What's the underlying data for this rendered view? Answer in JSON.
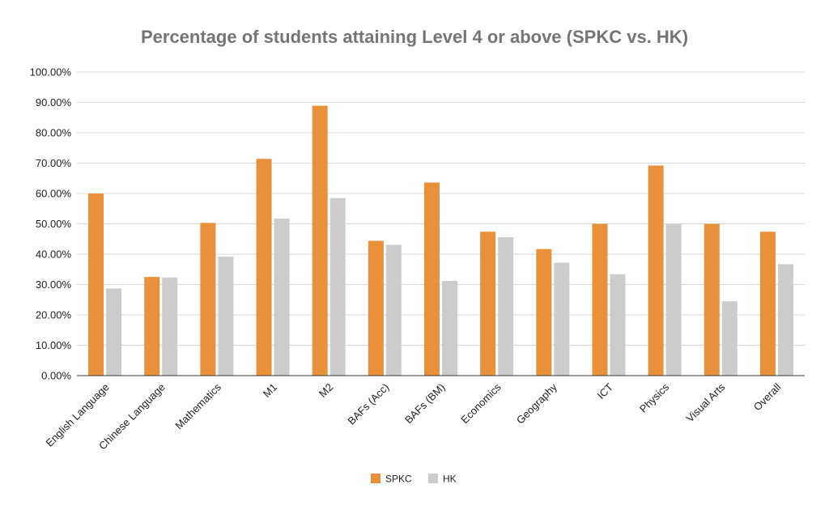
{
  "chart_data": {
    "type": "bar",
    "title": "Percentage of students attaining Level 4 or above (SPKC vs. HK)",
    "xlabel": "",
    "ylabel": "",
    "ylim": [
      0,
      100
    ],
    "yticks": [
      "0.00%",
      "10.00%",
      "20.00%",
      "30.00%",
      "40.00%",
      "50.00%",
      "60.00%",
      "70.00%",
      "80.00%",
      "90.00%",
      "100.00%"
    ],
    "categories": [
      "English Language",
      "Chinese Language",
      "Mathematics",
      "M1",
      "M2",
      "BAFs (Acc)",
      "BAFs (BM)",
      "Economics",
      "Geography",
      "ICT",
      "Physics",
      "Visual Arts",
      "Overall"
    ],
    "series": [
      {
        "name": "SPKC",
        "color": "#e8913a",
        "values": [
          60.0,
          32.5,
          50.3,
          71.4,
          88.9,
          44.4,
          63.6,
          47.4,
          41.7,
          50.0,
          69.2,
          50.0,
          47.4
        ]
      },
      {
        "name": "HK",
        "color": "#cccccc",
        "values": [
          28.7,
          32.3,
          39.2,
          51.7,
          58.5,
          43.1,
          31.2,
          45.6,
          37.2,
          33.4,
          50.0,
          24.5,
          36.7
        ]
      }
    ],
    "grid": true,
    "legend_position": "bottom"
  }
}
